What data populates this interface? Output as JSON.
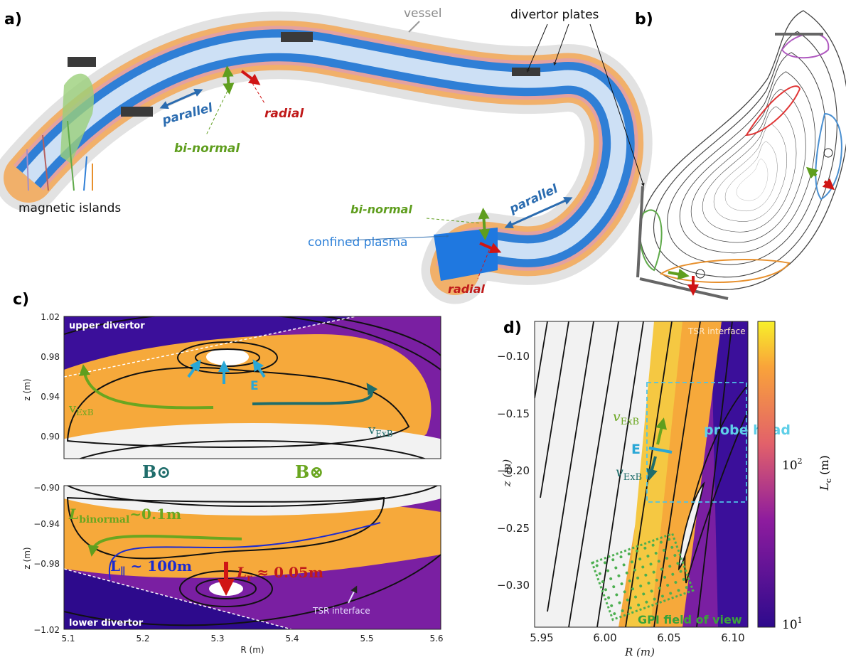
{
  "panel_a": {
    "label": "a)",
    "vessel": "vessel",
    "divertor_plates": "divertor plates",
    "parallel_1": "parallel",
    "radial_1": "radial",
    "binormal_1": "bi-normal",
    "magnetic_islands": "magnetic islands",
    "binormal_2": "bi-normal",
    "parallel_2": "parallel",
    "confined_plasma": "confined plasma",
    "radial_2": "radial"
  },
  "panel_b": {
    "label": "b)"
  },
  "panel_c": {
    "label": "c)",
    "upper": {
      "title": "upper divertor",
      "yticks": [
        "1.02",
        "0.98",
        "0.94",
        "0.90"
      ],
      "ylabel": "z (m)",
      "E": "E",
      "vexb_left": {
        "symbol": "v",
        "subscript": "ExB"
      },
      "vexb_right": {
        "symbol": "v",
        "subscript": "ExB"
      }
    },
    "b_out": "B⊙",
    "b_in": "B⊗",
    "lower": {
      "title": "lower divertor",
      "yticks": [
        "−0.90",
        "−0.94",
        "−0.98",
        "−1.02"
      ],
      "ylabel": "z (m)",
      "xticks": [
        "5.1",
        "5.2",
        "5.3",
        "5.4",
        "5.5",
        "5.6"
      ],
      "xlabel": "R (m)",
      "l_binormal": {
        "symbol": "L",
        "subscript": "binormal",
        "value": "~0.1m"
      },
      "l_parallel": {
        "symbol": "L",
        "subscript": "∥",
        "value": " ~ 100m"
      },
      "l_radial": {
        "symbol": "L",
        "subscript": "r",
        "value": " ≈ 0.05m"
      },
      "tsr": "TSR interface"
    }
  },
  "panel_d": {
    "label": "d)",
    "yticks": [
      "−0.10",
      "−0.15",
      "−0.20",
      "−0.25",
      "−0.30"
    ],
    "xticks": [
      "5.95",
      "6.00",
      "6.05",
      "6.10"
    ],
    "ylabel": "z (m)",
    "xlabel": "R (m)",
    "tsr": "TSR interface",
    "vexb_up": {
      "symbol": "v",
      "subscript": "ExB"
    },
    "E": "E",
    "vexb_down": {
      "symbol": "v",
      "subscript": "ExB"
    },
    "probe_head": "probe head",
    "gpi": "GPI field of view",
    "colorbar": {
      "label": {
        "symbol": "L",
        "subscript": "c",
        "unit": " (m)"
      },
      "ticks": [
        {
          "base": "10",
          "exponent": "2"
        },
        {
          "base": "10",
          "exponent": "1"
        }
      ]
    }
  }
}
